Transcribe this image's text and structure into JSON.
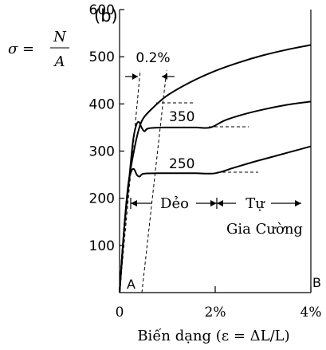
{
  "panel_label": "(b)",
  "ylabel": {
    "lhs": "σ =",
    "numerator": "N",
    "denominator": "A"
  },
  "xlabel": "Biến dạng (ε = ΔL/L)",
  "chart_data": {
    "type": "line",
    "x_unit": "%",
    "ylim": [
      0,
      600
    ],
    "xlim": [
      0,
      4
    ],
    "y_ticks": [
      100,
      200,
      300,
      400,
      500,
      600
    ],
    "x_ticks": [
      {
        "value": 0,
        "label": "0"
      },
      {
        "value": 2,
        "label": "2%"
      },
      {
        "value": 4,
        "label": "4%"
      }
    ],
    "series": [
      {
        "name": "",
        "points": [
          [
            0,
            0
          ],
          [
            0.1,
            140
          ],
          [
            0.2,
            240
          ],
          [
            0.3,
            300
          ],
          [
            0.4,
            345
          ],
          [
            0.5,
            370
          ],
          [
            0.7,
            392
          ],
          [
            1.0,
            418
          ],
          [
            1.5,
            447
          ],
          [
            2.0,
            470
          ],
          [
            2.5,
            488
          ],
          [
            3.0,
            503
          ],
          [
            3.5,
            515
          ],
          [
            4.0,
            525
          ]
        ]
      },
      {
        "name": "350",
        "points": [
          [
            0,
            0
          ],
          [
            0.1,
            140
          ],
          [
            0.2,
            240
          ],
          [
            0.28,
            320
          ],
          [
            0.34,
            352
          ],
          [
            0.4,
            362
          ],
          [
            0.46,
            350
          ],
          [
            0.52,
            342
          ],
          [
            0.6,
            348
          ],
          [
            0.9,
            350
          ],
          [
            1.3,
            350
          ],
          [
            1.6,
            350
          ],
          [
            1.9,
            350
          ],
          [
            2.2,
            365
          ],
          [
            2.6,
            378
          ],
          [
            3.0,
            388
          ],
          [
            3.5,
            398
          ],
          [
            4.0,
            405
          ]
        ]
      },
      {
        "name": "250",
        "points": [
          [
            0,
            0
          ],
          [
            0.1,
            140
          ],
          [
            0.18,
            228
          ],
          [
            0.24,
            256
          ],
          [
            0.3,
            262
          ],
          [
            0.36,
            250
          ],
          [
            0.42,
            246
          ],
          [
            0.5,
            252
          ],
          [
            0.8,
            253
          ],
          [
            1.2,
            253
          ],
          [
            1.6,
            253
          ],
          [
            2.0,
            253
          ],
          [
            2.4,
            265
          ],
          [
            2.8,
            277
          ],
          [
            3.2,
            288
          ],
          [
            3.6,
            299
          ],
          [
            4.0,
            310
          ]
        ]
      }
    ],
    "annotations": {
      "offset_label": "0.2%",
      "yield_label_350": "350",
      "yield_label_250": "250",
      "region_plastic": "Dẻo",
      "region_hardening_line1": "Tự",
      "region_hardening_line2": "Gia Cường",
      "point_a": "A",
      "point_b": "B"
    }
  }
}
